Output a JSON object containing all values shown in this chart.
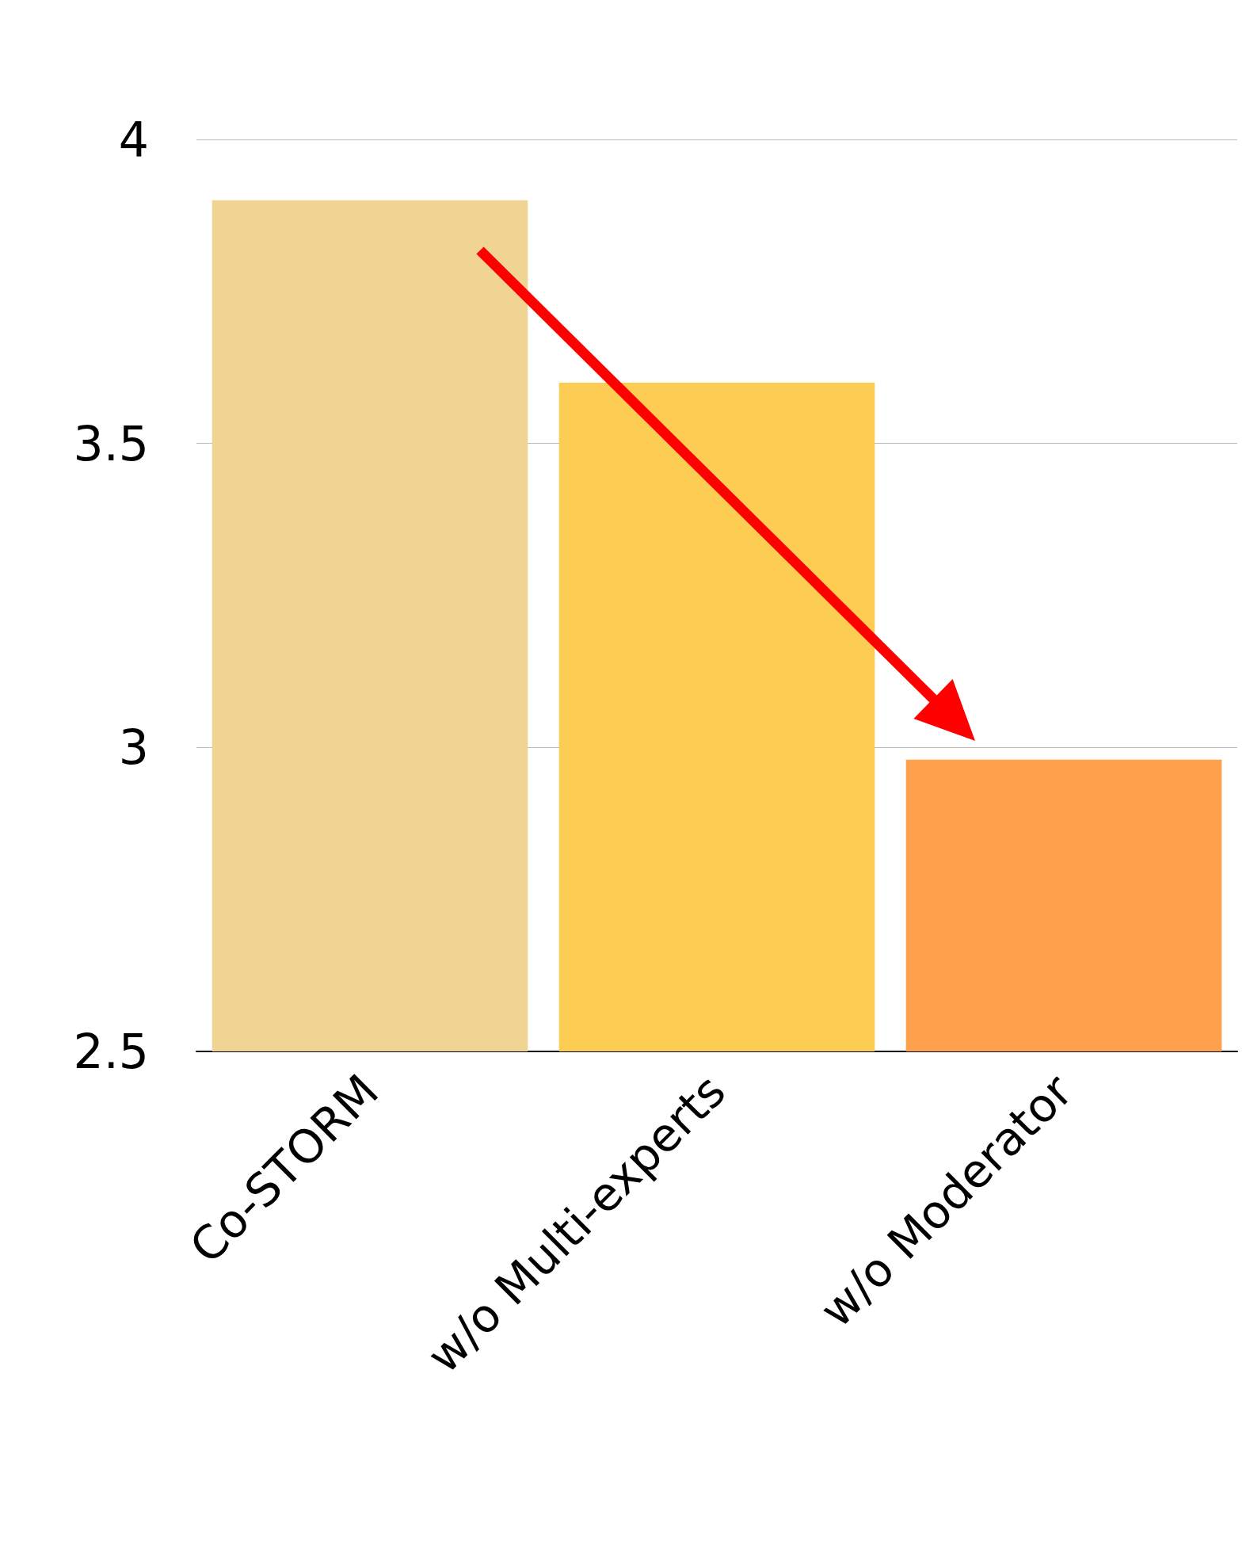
{
  "chart_data": {
    "type": "bar",
    "categories": [
      "Co-STORM",
      "w/o Multi-experts",
      "w/o Moderator"
    ],
    "values": [
      3.9,
      3.6,
      2.98
    ],
    "colors": [
      "#efd493",
      "#fdcc52",
      "#ffa04d"
    ],
    "ylim": [
      2.5,
      4
    ],
    "yticks": [
      2.5,
      3,
      3.5,
      4
    ],
    "grid": "y"
  }
}
